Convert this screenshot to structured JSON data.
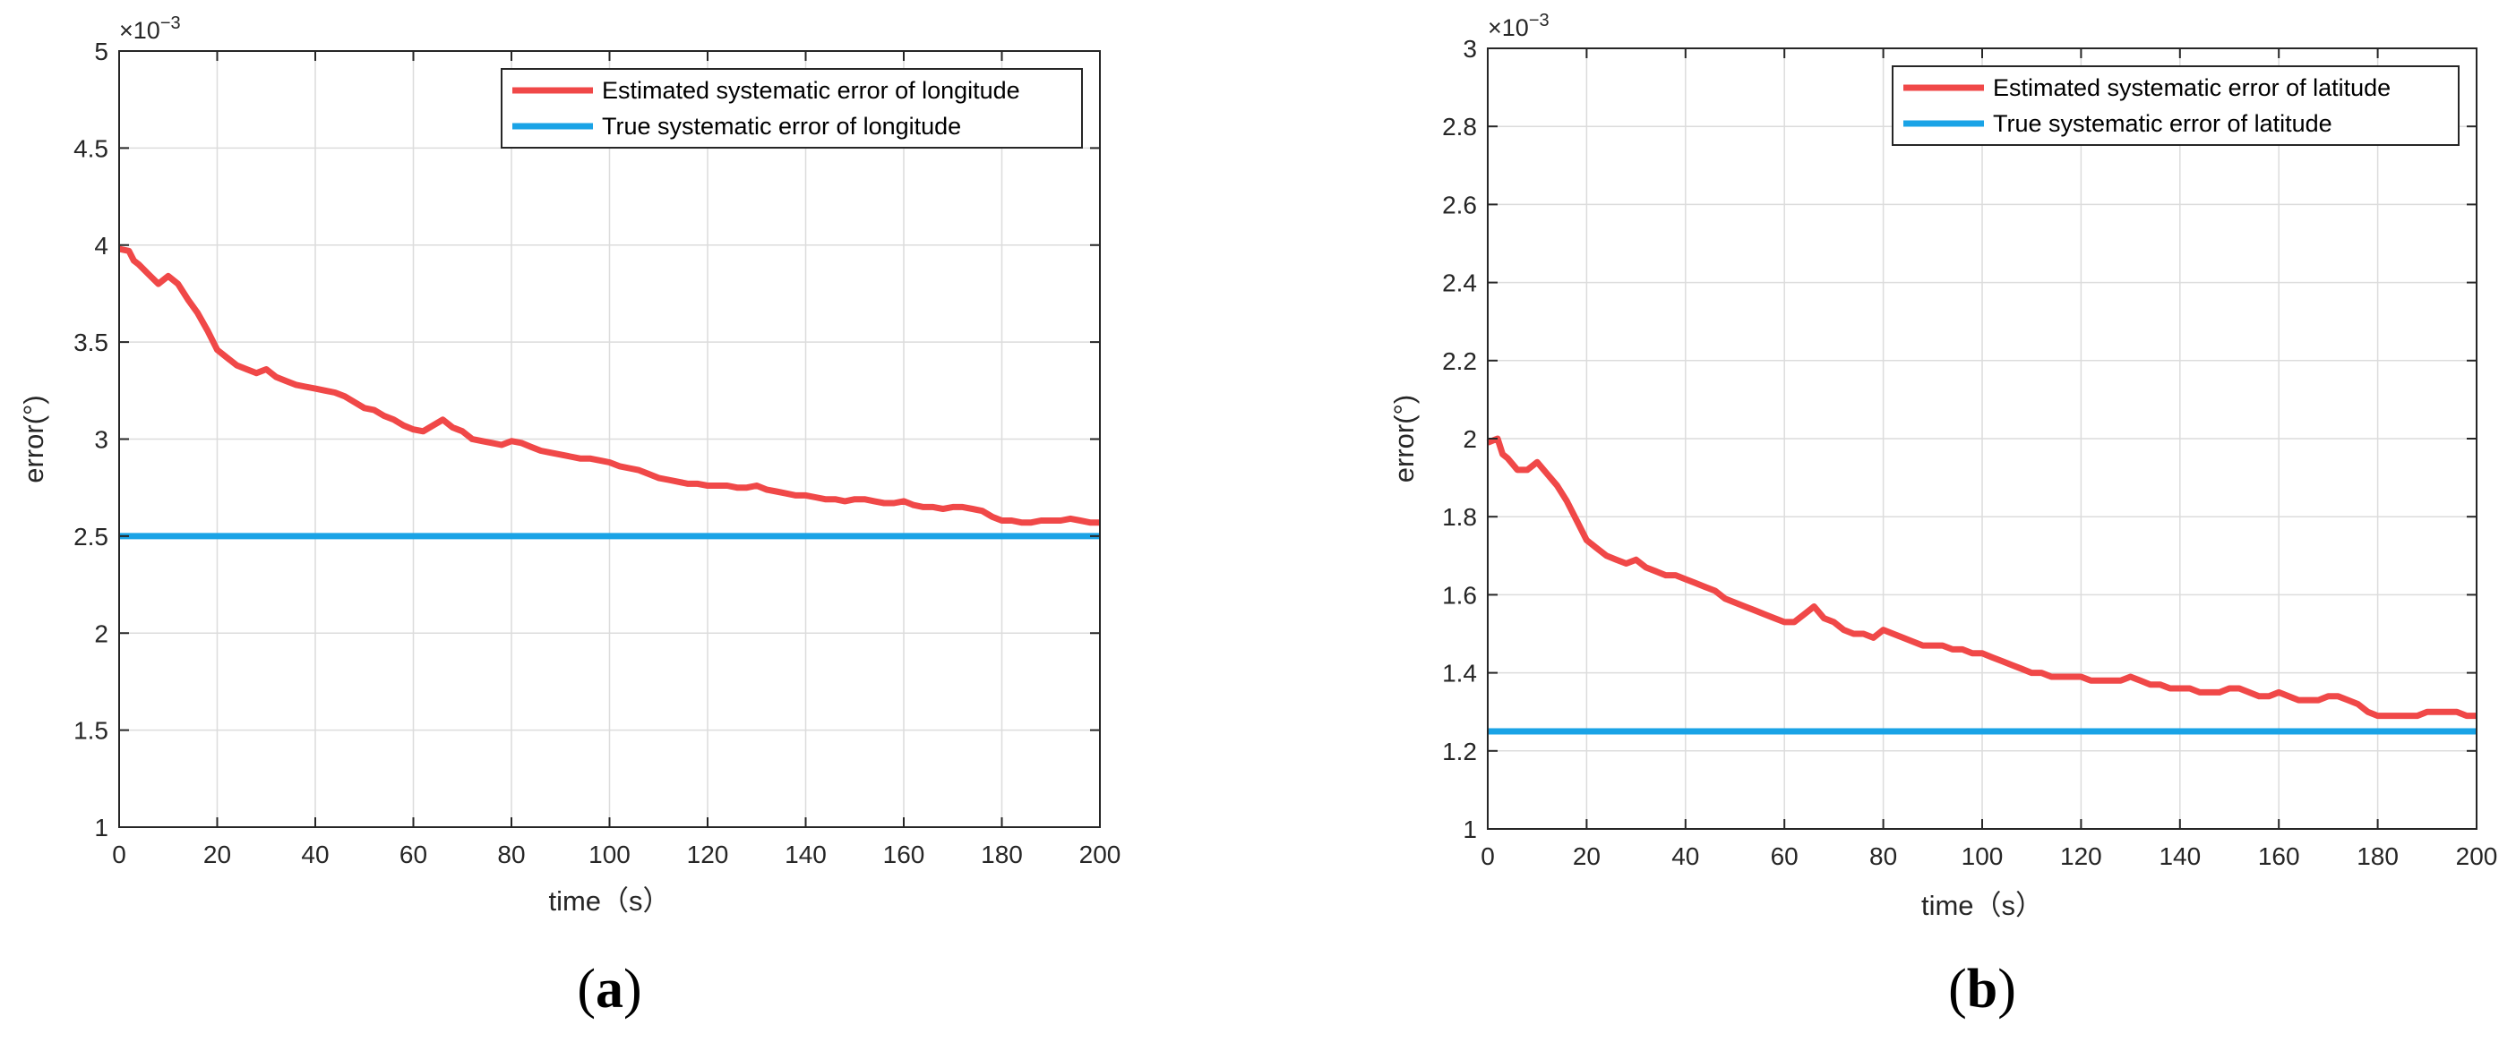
{
  "colors": {
    "estimated": "#f04848",
    "true": "#1aa3e6",
    "grid": "#dcdcdc",
    "axis": "#262626"
  },
  "chart_data": [
    {
      "type": "line",
      "panel_label_open": "(",
      "panel_label_letter": "a",
      "panel_label_close": ")",
      "xlabel": "time（s）",
      "ylabel": "error(°)",
      "exponent_base": "×10",
      "exponent": "−3",
      "xlim": [
        0,
        200
      ],
      "ylim": [
        1,
        5
      ],
      "xticks": [
        "0",
        "20",
        "40",
        "60",
        "80",
        "100",
        "120",
        "140",
        "160",
        "180",
        "200"
      ],
      "yticks": [
        "1",
        "1.5",
        "2",
        "2.5",
        "3",
        "3.5",
        "4",
        "4.5",
        "5"
      ],
      "legend_position": "top-right",
      "series": [
        {
          "name": "Estimated systematic error of longitude",
          "color_key": "estimated",
          "x": [
            0,
            2,
            3,
            4,
            6,
            8,
            10,
            12,
            14,
            16,
            18,
            20,
            22,
            24,
            26,
            28,
            30,
            32,
            34,
            36,
            38,
            40,
            42,
            44,
            46,
            48,
            50,
            52,
            54,
            56,
            58,
            60,
            62,
            64,
            66,
            68,
            70,
            72,
            74,
            76,
            78,
            80,
            82,
            84,
            86,
            88,
            90,
            92,
            94,
            96,
            98,
            100,
            102,
            104,
            106,
            108,
            110,
            112,
            114,
            116,
            118,
            120,
            122,
            124,
            126,
            128,
            130,
            132,
            134,
            136,
            138,
            140,
            142,
            144,
            146,
            148,
            150,
            152,
            154,
            156,
            158,
            160,
            162,
            164,
            166,
            168,
            170,
            172,
            174,
            176,
            178,
            180,
            182,
            184,
            186,
            188,
            190,
            192,
            194,
            196,
            198,
            200
          ],
          "y": [
            3.98,
            3.97,
            3.92,
            3.9,
            3.85,
            3.8,
            3.84,
            3.8,
            3.72,
            3.65,
            3.56,
            3.46,
            3.42,
            3.38,
            3.36,
            3.34,
            3.36,
            3.32,
            3.3,
            3.28,
            3.27,
            3.26,
            3.25,
            3.24,
            3.22,
            3.19,
            3.16,
            3.15,
            3.12,
            3.1,
            3.07,
            3.05,
            3.04,
            3.07,
            3.1,
            3.06,
            3.04,
            3.0,
            2.99,
            2.98,
            2.97,
            2.99,
            2.98,
            2.96,
            2.94,
            2.93,
            2.92,
            2.91,
            2.9,
            2.9,
            2.89,
            2.88,
            2.86,
            2.85,
            2.84,
            2.82,
            2.8,
            2.79,
            2.78,
            2.77,
            2.77,
            2.76,
            2.76,
            2.76,
            2.75,
            2.75,
            2.76,
            2.74,
            2.73,
            2.72,
            2.71,
            2.71,
            2.7,
            2.69,
            2.69,
            2.68,
            2.69,
            2.69,
            2.68,
            2.67,
            2.67,
            2.68,
            2.66,
            2.65,
            2.65,
            2.64,
            2.65,
            2.65,
            2.64,
            2.63,
            2.6,
            2.58,
            2.58,
            2.57,
            2.57,
            2.58,
            2.58,
            2.58,
            2.59,
            2.58,
            2.57,
            2.57
          ]
        },
        {
          "name": "True systematic error of longitude",
          "color_key": "true",
          "x": [
            0,
            200
          ],
          "y": [
            2.5,
            2.5
          ]
        }
      ]
    },
    {
      "type": "line",
      "panel_label_open": "(",
      "panel_label_letter": "b",
      "panel_label_close": ")",
      "xlabel": "time（s）",
      "ylabel": "error(°)",
      "exponent_base": "×10",
      "exponent": "−3",
      "xlim": [
        0,
        200
      ],
      "ylim": [
        1,
        3
      ],
      "xticks": [
        "0",
        "20",
        "40",
        "60",
        "80",
        "100",
        "120",
        "140",
        "160",
        "180",
        "200"
      ],
      "yticks": [
        "1",
        "1.2",
        "1.4",
        "1.6",
        "1.8",
        "2",
        "2.2",
        "2.4",
        "2.6",
        "2.8",
        "3"
      ],
      "legend_position": "top-right",
      "series": [
        {
          "name": "Estimated systematic error of latitude",
          "color_key": "estimated",
          "x": [
            0,
            2,
            3,
            4,
            6,
            8,
            10,
            12,
            14,
            16,
            18,
            20,
            22,
            24,
            26,
            28,
            30,
            32,
            34,
            36,
            38,
            40,
            42,
            44,
            46,
            48,
            50,
            52,
            54,
            56,
            58,
            60,
            62,
            64,
            66,
            68,
            70,
            72,
            74,
            76,
            78,
            80,
            82,
            84,
            86,
            88,
            90,
            92,
            94,
            96,
            98,
            100,
            102,
            104,
            106,
            108,
            110,
            112,
            114,
            116,
            118,
            120,
            122,
            124,
            126,
            128,
            130,
            132,
            134,
            136,
            138,
            140,
            142,
            144,
            146,
            148,
            150,
            152,
            154,
            156,
            158,
            160,
            162,
            164,
            166,
            168,
            170,
            172,
            174,
            176,
            178,
            180,
            182,
            184,
            186,
            188,
            190,
            192,
            194,
            196,
            198,
            200
          ],
          "y": [
            1.99,
            2.0,
            1.96,
            1.95,
            1.92,
            1.92,
            1.94,
            1.91,
            1.88,
            1.84,
            1.79,
            1.74,
            1.72,
            1.7,
            1.69,
            1.68,
            1.69,
            1.67,
            1.66,
            1.65,
            1.65,
            1.64,
            1.63,
            1.62,
            1.61,
            1.59,
            1.58,
            1.57,
            1.56,
            1.55,
            1.54,
            1.53,
            1.53,
            1.55,
            1.57,
            1.54,
            1.53,
            1.51,
            1.5,
            1.5,
            1.49,
            1.51,
            1.5,
            1.49,
            1.48,
            1.47,
            1.47,
            1.47,
            1.46,
            1.46,
            1.45,
            1.45,
            1.44,
            1.43,
            1.42,
            1.41,
            1.4,
            1.4,
            1.39,
            1.39,
            1.39,
            1.39,
            1.38,
            1.38,
            1.38,
            1.38,
            1.39,
            1.38,
            1.37,
            1.37,
            1.36,
            1.36,
            1.36,
            1.35,
            1.35,
            1.35,
            1.36,
            1.36,
            1.35,
            1.34,
            1.34,
            1.35,
            1.34,
            1.33,
            1.33,
            1.33,
            1.34,
            1.34,
            1.33,
            1.32,
            1.3,
            1.29,
            1.29,
            1.29,
            1.29,
            1.29,
            1.3,
            1.3,
            1.3,
            1.3,
            1.29,
            1.29
          ]
        },
        {
          "name": "True systematic error of latitude",
          "color_key": "true",
          "x": [
            0,
            200
          ],
          "y": [
            1.25,
            1.25
          ]
        }
      ]
    }
  ]
}
